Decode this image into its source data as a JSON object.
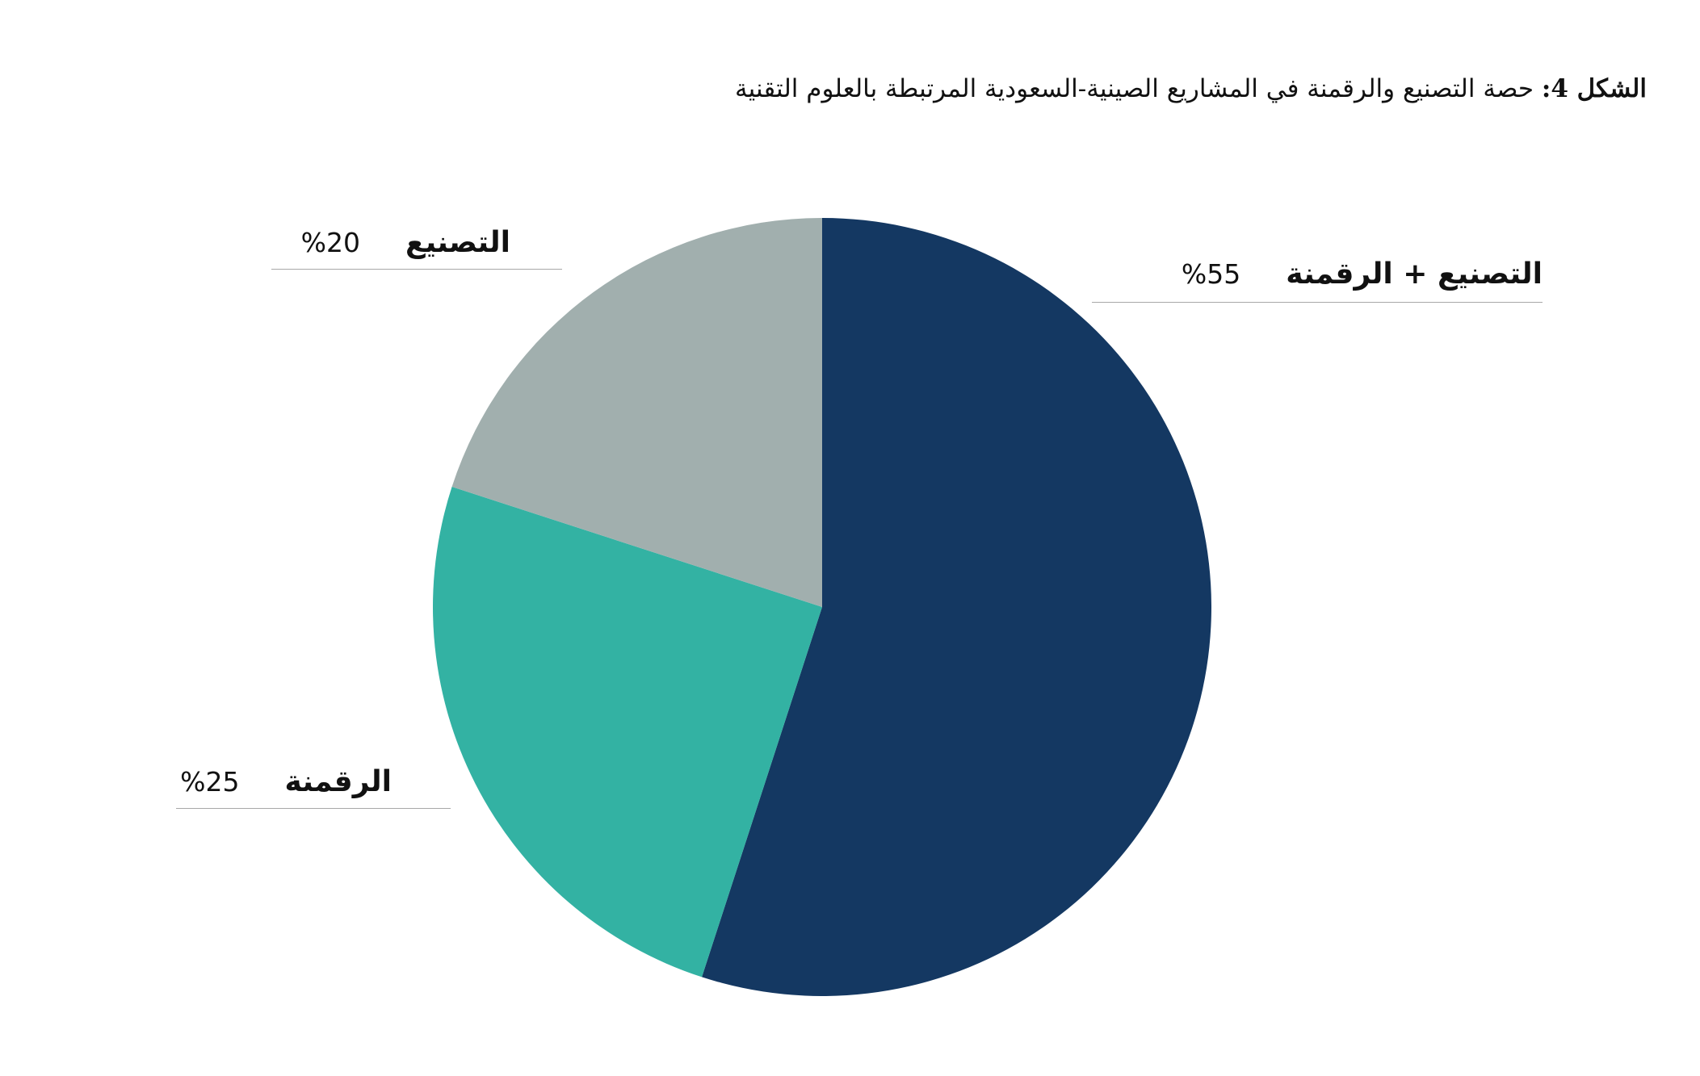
{
  "title": {
    "label": "الشكل 4:",
    "text": "حصة التصنيع والرقمنة في المشاريع الصينية-السعودية المرتبطة بالعلوم التقنية"
  },
  "chart_data": {
    "type": "pie",
    "start_angle_deg": 0,
    "direction": "clockwise",
    "slices": [
      {
        "label": "التصنيع + الرقمنة",
        "value": 55,
        "value_label": "55%",
        "color": "#143862"
      },
      {
        "label": "الرقمنة",
        "value": 25,
        "value_label": "25%",
        "color": "#33b2a3"
      },
      {
        "label": "التصنيع",
        "value": 20,
        "value_label": "20%",
        "color": "#a1afae"
      }
    ]
  }
}
